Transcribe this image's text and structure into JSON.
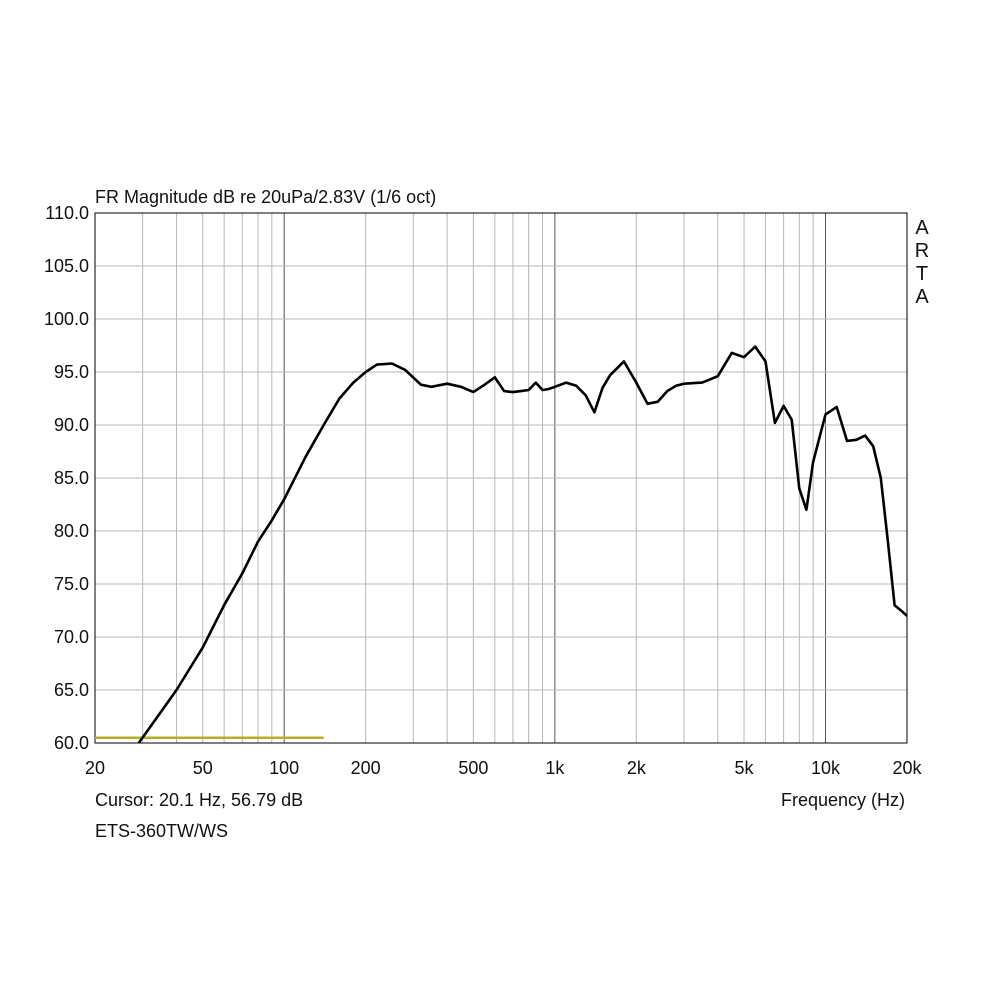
{
  "chart_data": {
    "type": "line",
    "title": "FR Magnitude dB re 20uPa/2.83V (1/6 oct)",
    "xlabel": "Frequency (Hz)",
    "ylabel": "",
    "x_scale": "log",
    "xlim": [
      20,
      20000
    ],
    "ylim": [
      60,
      110
    ],
    "x_tick_values": [
      20,
      50,
      100,
      200,
      500,
      1000,
      2000,
      5000,
      10000,
      20000
    ],
    "x_tick_labels": [
      "20",
      "50",
      "100",
      "200",
      "500",
      "1k",
      "2k",
      "5k",
      "10k",
      "20k"
    ],
    "y_tick_values": [
      60,
      65,
      70,
      75,
      80,
      85,
      90,
      95,
      100,
      105,
      110
    ],
    "y_tick_labels": [
      "60.0",
      "65.0",
      "70.0",
      "75.0",
      "80.0",
      "85.0",
      "90.0",
      "95.0",
      "100.0",
      "105.0",
      "110.0"
    ],
    "grid": true,
    "series": [
      {
        "color": "#000000",
        "x": [
          29,
          33,
          40,
          50,
          60,
          70,
          80,
          90,
          100,
          120,
          140,
          160,
          180,
          200,
          220,
          250,
          280,
          320,
          350,
          400,
          450,
          500,
          550,
          600,
          650,
          700,
          750,
          800,
          850,
          900,
          950,
          1000,
          1100,
          1200,
          1300,
          1400,
          1500,
          1600,
          1800,
          2000,
          2200,
          2400,
          2600,
          2800,
          3000,
          3500,
          4000,
          4500,
          5000,
          5500,
          6000,
          6500,
          7000,
          7500,
          8000,
          8500,
          9000,
          10000,
          11000,
          12000,
          13000,
          14000,
          15000,
          16000,
          17000,
          18000,
          19000,
          20000
        ],
        "y": [
          60,
          62,
          65,
          69,
          73,
          76,
          79,
          81,
          83,
          87,
          90,
          92.5,
          94,
          95,
          95.7,
          95.8,
          95.2,
          93.8,
          93.6,
          93.9,
          93.6,
          93.1,
          93.8,
          94.5,
          93.2,
          93.1,
          93.2,
          93.3,
          94.0,
          93.3,
          93.4,
          93.6,
          94.0,
          93.7,
          92.8,
          91.2,
          93.5,
          94.7,
          96.0,
          94.0,
          92.0,
          92.2,
          93.2,
          93.7,
          93.9,
          94.0,
          94.6,
          96.8,
          96.4,
          97.4,
          96.0,
          90.2,
          91.8,
          90.5,
          84.0,
          82.0,
          86.5,
          91.0,
          91.7,
          88.5,
          88.6,
          89.0,
          88.0,
          85.0,
          79.0,
          73.0,
          72.5,
          72.0
        ]
      }
    ],
    "cursor_marker": {
      "color": "#b8b020",
      "x_range": [
        20,
        140
      ],
      "y": 60.5
    },
    "side_label": [
      "A",
      "R",
      "T",
      "A"
    ],
    "cursor_text": "Cursor: 20.1 Hz, 56.79 dB",
    "device_name": "ETS-360TW/WS"
  }
}
